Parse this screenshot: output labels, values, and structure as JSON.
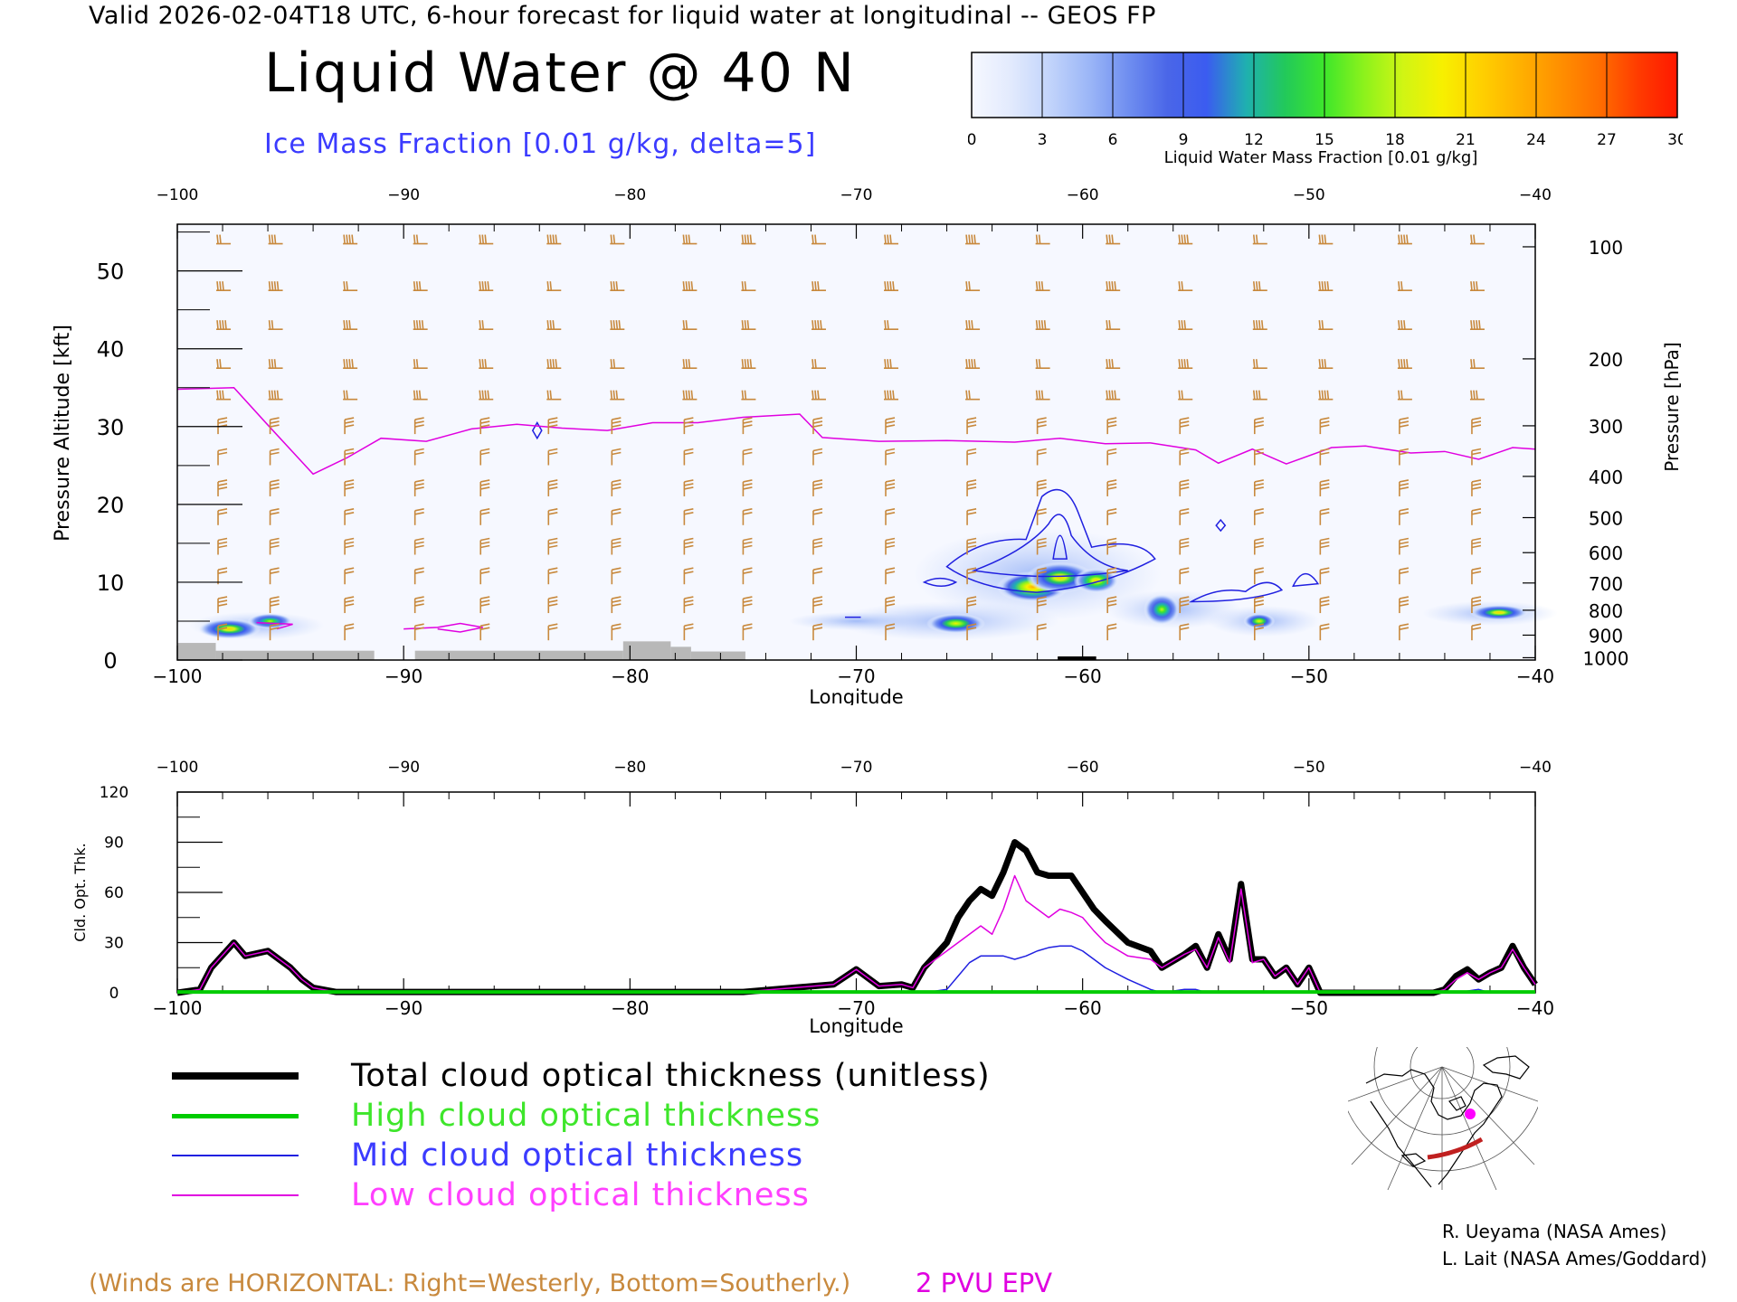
{
  "header": "Valid 2026-02-04T18 UTC, 6-hour forecast for liquid water at longitudinal -- GEOS FP",
  "title": "Liquid Water @ 40 N",
  "subtitle": "Ice Mass Fraction [0.01 g/kg, delta=5]",
  "colorbar": {
    "label": "Liquid Water Mass Fraction [0.01 g/kg]",
    "ticks": [
      "0",
      "3",
      "6",
      "9",
      "12",
      "15",
      "18",
      "21",
      "24",
      "27",
      "30"
    ],
    "colors": [
      "#f6f8ff",
      "#e2eafd",
      "#c2d4fb",
      "#9bb6f7",
      "#6f8ef0",
      "#4a66e8",
      "#3b5cf0",
      "#1fb0b0",
      "#22c95a",
      "#3ee62b",
      "#8cf21c",
      "#d0f514",
      "#f7f000",
      "#ffd000",
      "#ffb000",
      "#ff9000",
      "#ff6e00",
      "#ff3c00",
      "#ff1800"
    ]
  },
  "colors": {
    "wind": "#c8893d",
    "epv": "#e000e0",
    "ice": "#2020e0",
    "terrain": "#b8b8b8",
    "total": "#000000",
    "high": "#00cc00",
    "mid": "#2020e0",
    "low": "#e000e0"
  },
  "chart_data": [
    {
      "type": "heatmap",
      "xlabel": "Longitude",
      "ylabel": "Pressure Altitude [kft]",
      "ylabel_right": "Pressure [hPa]",
      "xlim": [
        -100,
        -40
      ],
      "ylim": [
        0,
        56
      ],
      "x_ticks": [
        "−100",
        "−90",
        "−80",
        "−70",
        "−60",
        "−50",
        "−40"
      ],
      "x_tick_values": [
        -100,
        -90,
        -80,
        -70,
        -60,
        -50,
        -40
      ],
      "y_ticks": [
        "0",
        "10",
        "20",
        "30",
        "40",
        "50"
      ],
      "y_tick_values": [
        0,
        10,
        20,
        30,
        40,
        50
      ],
      "pressure_ticks": [
        {
          "label": "100",
          "kft": 53.1
        },
        {
          "label": "200",
          "kft": 38.7
        },
        {
          "label": "300",
          "kft": 30.1
        },
        {
          "label": "400",
          "kft": 23.6
        },
        {
          "label": "500",
          "kft": 18.3
        },
        {
          "label": "600",
          "kft": 13.8
        },
        {
          "label": "700",
          "kft": 9.9
        },
        {
          "label": "800",
          "kft": 6.4
        },
        {
          "label": "900",
          "kft": 3.2
        },
        {
          "label": "1000",
          "kft": 0.3
        }
      ],
      "liquid_water_blobs": [
        {
          "lon": -97.7,
          "kft": 4.0,
          "value": 21,
          "rx": 1.4,
          "ry": 1.3
        },
        {
          "lon": -95.9,
          "kft": 5.0,
          "value": 18,
          "rx": 1.0,
          "ry": 1.0
        },
        {
          "lon": -65.6,
          "kft": 4.7,
          "value": 20,
          "rx": 1.3,
          "ry": 1.3
        },
        {
          "lon": -62.2,
          "kft": 9.4,
          "value": 24,
          "rx": 1.6,
          "ry": 2.0
        },
        {
          "lon": -61.0,
          "kft": 10.6,
          "value": 21,
          "rx": 1.5,
          "ry": 2.0
        },
        {
          "lon": -59.4,
          "kft": 10.2,
          "value": 22,
          "rx": 1.0,
          "ry": 1.6
        },
        {
          "lon": -56.5,
          "kft": 6.5,
          "value": 18,
          "rx": 0.8,
          "ry": 2.0
        },
        {
          "lon": -52.2,
          "kft": 5.0,
          "value": 20,
          "rx": 0.7,
          "ry": 1.0
        },
        {
          "lon": -41.6,
          "kft": 6.1,
          "value": 21,
          "rx": 1.3,
          "ry": 1.0
        }
      ],
      "epv_2pvu_line": {
        "lon": [
          -100,
          -97.5,
          -96,
          -94,
          -92.5,
          -91,
          -89,
          -87,
          -85,
          -83,
          -81,
          -79,
          -77,
          -75,
          -72.5,
          -71.5,
          -69,
          -66,
          -63,
          -61,
          -59,
          -57,
          -55,
          -54,
          -52.5,
          -51,
          -49,
          -47.5,
          -45.5,
          -44,
          -42.5,
          -41,
          -40
        ],
        "kft": [
          34.8,
          35.0,
          30.2,
          23.9,
          26.0,
          28.5,
          28.1,
          29.7,
          30.3,
          29.8,
          29.5,
          30.5,
          30.5,
          31.2,
          31.6,
          28.6,
          28.1,
          28.2,
          28.0,
          28.5,
          27.8,
          27.9,
          27.0,
          25.3,
          27.1,
          25.2,
          27.3,
          27.5,
          26.6,
          26.8,
          25.8,
          27.3,
          27.1
        ]
      },
      "terrain_columns": [
        {
          "lon_start": -100,
          "lon_end": -98.3,
          "kft": 2.2
        },
        {
          "lon_start": -98.3,
          "lon_end": -91.3,
          "kft": 1.2
        },
        {
          "lon_start": -89.5,
          "lon_end": -80.3,
          "kft": 1.2
        },
        {
          "lon_start": -80.3,
          "lon_end": -78.2,
          "kft": 2.4
        },
        {
          "lon_start": -78.2,
          "lon_end": -77.3,
          "kft": 1.7
        },
        {
          "lon_start": -77.3,
          "lon_end": -74.9,
          "kft": 1.1
        }
      ],
      "wind_barb_lons": [
        -98.2,
        -95.9,
        -92.6,
        -89.5,
        -86.6,
        -83.6,
        -80.8,
        -77.6,
        -75.0,
        -71.9,
        -68.7,
        -65.1,
        -62.0,
        -58.9,
        -55.7,
        -52.4,
        -49.5,
        -46.0,
        -42.8
      ],
      "wind_barb_kft": [
        53.5,
        47.5,
        42.5,
        37.5,
        33.5,
        29.5,
        25.5,
        21.5,
        17.8,
        14.0,
        10.2,
        6.5,
        3.0
      ]
    },
    {
      "type": "line",
      "xlabel": "Longitude",
      "ylabel": "Cld. Opt. Thk.",
      "xlim": [
        -100,
        -40
      ],
      "ylim": [
        0,
        120
      ],
      "x_ticks": [
        "−100",
        "−90",
        "−80",
        "−70",
        "−60",
        "−50",
        "−40"
      ],
      "x_tick_values": [
        -100,
        -90,
        -80,
        -70,
        -60,
        -50,
        -40
      ],
      "y_ticks": [
        "0",
        "30",
        "60",
        "90",
        "120"
      ],
      "y_tick_values": [
        0,
        30,
        60,
        90,
        120
      ],
      "x": [
        -100,
        -99,
        -98.5,
        -97.5,
        -97,
        -96,
        -95.5,
        -95,
        -94.5,
        -94,
        -93,
        -91,
        -85,
        -81,
        -75,
        -71,
        -70,
        -69,
        -68,
        -67.5,
        -67,
        -66,
        -65.5,
        -65,
        -64.5,
        -64,
        -63.5,
        -63,
        -62.5,
        -62,
        -61.5,
        -61,
        -60.5,
        -60,
        -59.5,
        -59,
        -58,
        -57,
        -56.5,
        -55.5,
        -55,
        -54.5,
        -54,
        -53.5,
        -53,
        -52.5,
        -52,
        -51.5,
        -51,
        -50.5,
        -50,
        -49.5,
        -46,
        -44.5,
        -44,
        -43.5,
        -43,
        -42.5,
        -42,
        -41.5,
        -41,
        -40.5,
        -40
      ],
      "series": [
        {
          "name": "Total cloud optical thickness (unitless)",
          "values": [
            0,
            2,
            15,
            30,
            22,
            25,
            20,
            15,
            8,
            3,
            0.5,
            0.5,
            0.5,
            0.5,
            0.5,
            5,
            14,
            4,
            5,
            3,
            15,
            30,
            45,
            55,
            62,
            58,
            72,
            90,
            85,
            72,
            70,
            70,
            70,
            60,
            50,
            43,
            30,
            25,
            15,
            23,
            28,
            15,
            35,
            20,
            65,
            20,
            20,
            10,
            15,
            5,
            15,
            0,
            0,
            0,
            2,
            10,
            14,
            8,
            12,
            15,
            28,
            15,
            5
          ]
        },
        {
          "name": "High cloud optical thickness",
          "values": [
            0.5,
            0.5,
            0.5,
            0.5,
            0.5,
            0.5,
            0.5,
            0.5,
            0.5,
            0.5,
            0.5,
            0.5,
            0.5,
            0.5,
            0.5,
            0.5,
            0.5,
            0.5,
            0.5,
            0.5,
            0.5,
            0.5,
            0.5,
            0.5,
            0.5,
            0.5,
            0.5,
            0.5,
            0.5,
            0.5,
            0.5,
            0.5,
            0.5,
            0.5,
            0.5,
            0.5,
            0.5,
            0.5,
            0.5,
            0.5,
            0.5,
            0.5,
            0.5,
            0.5,
            0.5,
            0.5,
            0.5,
            0.5,
            0.5,
            0.5,
            0.5,
            0.5,
            0.5,
            0.5,
            0.5,
            0.5,
            0.5,
            0.5,
            0.5,
            0.5,
            0.5,
            0.5,
            0.5
          ]
        },
        {
          "name": "Mid cloud optical thickness",
          "values": [
            0,
            0,
            0,
            0,
            0,
            0,
            0,
            0,
            0,
            0,
            0,
            0,
            0,
            0,
            0,
            0,
            0,
            0,
            0,
            0,
            0,
            2,
            10,
            18,
            22,
            22,
            22,
            20,
            22,
            25,
            27,
            28,
            28,
            25,
            20,
            15,
            8,
            2,
            0,
            2,
            2,
            0,
            0,
            1,
            0,
            0,
            0,
            0,
            0,
            0,
            0,
            0,
            0,
            0,
            0,
            0,
            1,
            2,
            0,
            0,
            0,
            0,
            0
          ]
        },
        {
          "name": "Low cloud optical thickness",
          "values": [
            0,
            2,
            15,
            30,
            22,
            25,
            20,
            15,
            8,
            3,
            0.5,
            0.5,
            0.5,
            0.5,
            0.5,
            5,
            14,
            4,
            5,
            3,
            15,
            25,
            30,
            35,
            40,
            35,
            50,
            70,
            55,
            50,
            45,
            50,
            48,
            45,
            37,
            30,
            22,
            20,
            15,
            23,
            26,
            15,
            33,
            18,
            62,
            18,
            20,
            10,
            15,
            5,
            15,
            0,
            0,
            0,
            2,
            8,
            12,
            8,
            12,
            15,
            26,
            15,
            5
          ]
        }
      ]
    }
  ],
  "legend": [
    {
      "label": "Total cloud optical thickness (unitless)",
      "color": "#000000",
      "width": 8
    },
    {
      "label": "High cloud optical thickness",
      "color": "#00cc00",
      "width": 5
    },
    {
      "label": "Mid cloud optical thickness",
      "color": "#2020e0",
      "width": 2
    },
    {
      "label": "Low cloud optical thickness",
      "color": "#e000e0",
      "width": 2
    }
  ],
  "winds_note": "(Winds are HORIZONTAL: Right=Westerly, Bottom=Southerly.)",
  "pvu_note": "2 PVU EPV",
  "credits": [
    "R. Ueyama (NASA Ames)",
    "L. Lait (NASA Ames/Goddard)"
  ]
}
